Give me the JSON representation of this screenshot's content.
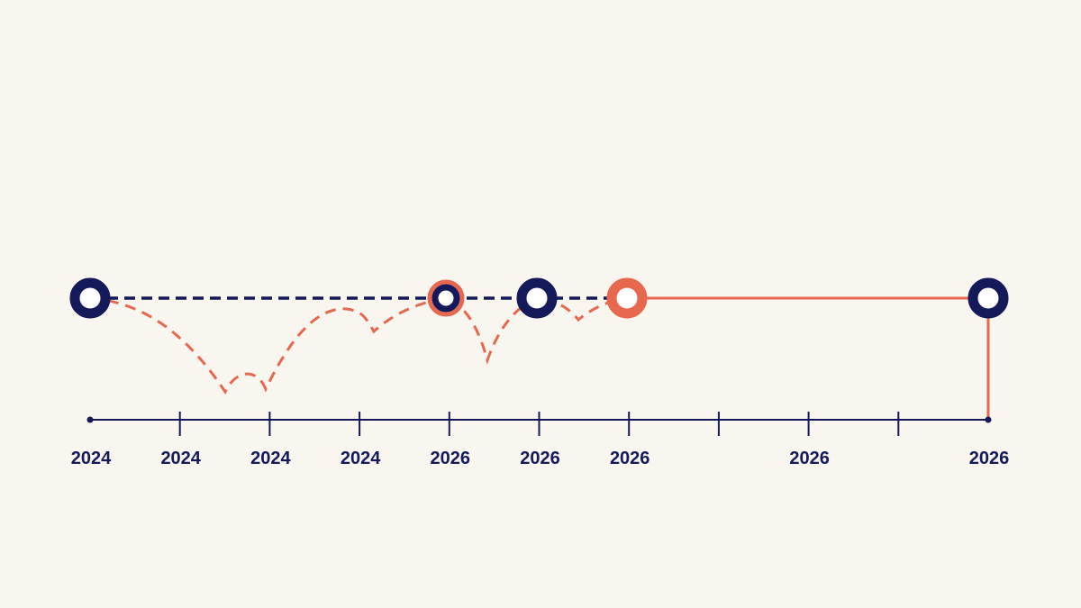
{
  "timeline": {
    "ticks": [
      "2024",
      "2024",
      "2024",
      "2024",
      "2026",
      "2026",
      "2026",
      null,
      "2026",
      null,
      "2026"
    ]
  }
}
